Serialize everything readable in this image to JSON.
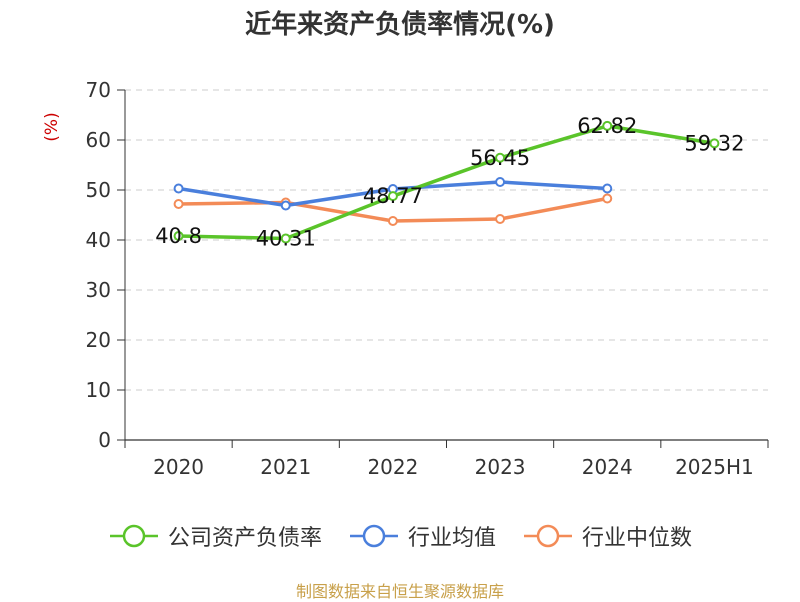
{
  "page": {
    "title": "近年来资产负债率情况(%)",
    "unit_label": "(%)",
    "source": "制图数据来自恒生聚源数据库"
  },
  "chart_data": {
    "type": "line",
    "title": "近年来资产负债率情况(%)",
    "ylabel": "(%)",
    "xlabel": "",
    "categories": [
      "2020",
      "2021",
      "2022",
      "2023",
      "2024",
      "2025H1"
    ],
    "ylim": [
      0,
      70
    ],
    "yticks": [
      0,
      10,
      20,
      30,
      40,
      50,
      60,
      70
    ],
    "grid": true,
    "legend_position": "bottom",
    "series": [
      {
        "name": "公司资产负债率",
        "color": "#5ac42a",
        "values": [
          40.8,
          40.31,
          48.77,
          56.45,
          62.82,
          59.32
        ],
        "labels": [
          "40.8",
          "40.31",
          "48.77",
          "56.45",
          "62.82",
          "59.32"
        ]
      },
      {
        "name": "行业均值",
        "color": "#4a7fdc",
        "values": [
          50.3,
          46.9,
          50.2,
          51.6,
          50.3,
          null
        ]
      },
      {
        "name": "行业中位数",
        "color": "#f38b57",
        "values": [
          47.2,
          47.5,
          43.8,
          44.2,
          48.3,
          null
        ]
      }
    ]
  }
}
